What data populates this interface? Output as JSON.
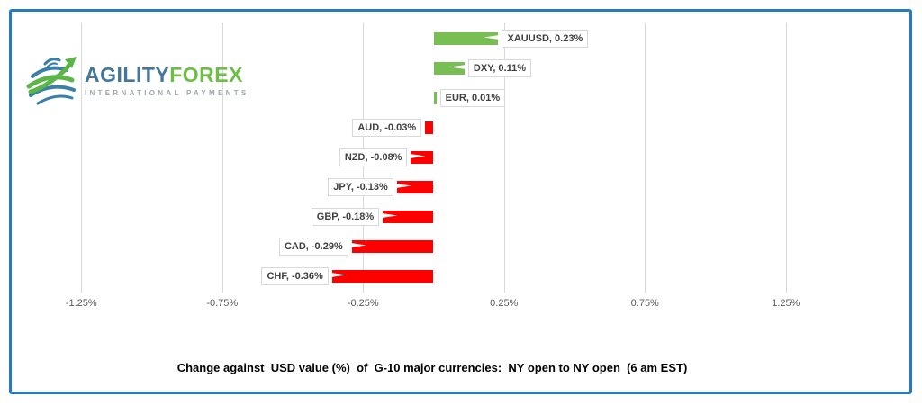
{
  "frame": {
    "border_color": "#2879BF"
  },
  "logo": {
    "brand_primary": "AGILITY",
    "brand_secondary": "FOREX",
    "tagline": "INTERNATIONAL PAYMENTS",
    "icon": "globe-arrow-icon",
    "colors": {
      "primary": "#45779B",
      "secondary": "#6CBE45",
      "tagline": "#A0A6AC"
    }
  },
  "chart_data": {
    "type": "bar",
    "orientation": "horizontal",
    "title": "Change against  USD value (%)  of  G-10 major currencies:  NY open to NY open  (6 am EST)",
    "categories": [
      "XAUUSD",
      "DXY",
      "EUR",
      "AUD",
      "NZD",
      "JPY",
      "GBP",
      "CAD",
      "CHF"
    ],
    "values": [
      0.23,
      0.11,
      0.01,
      -0.03,
      -0.08,
      -0.13,
      -0.18,
      -0.29,
      -0.36
    ],
    "data_labels": [
      "XAUUSD, 0.23%",
      "DXY, 0.11%",
      "EUR, 0.01%",
      "AUD, -0.03%",
      "NZD, -0.08%",
      "JPY, -0.13%",
      "GBP, -0.18%",
      "CAD, -0.29%",
      "CHF, -0.36%"
    ],
    "x_ticks": [
      "-1.25%",
      "-0.75%",
      "-0.25%",
      "0.25%",
      "0.75%",
      "1.25%"
    ],
    "x_tick_values": [
      -1.25,
      -0.75,
      -0.25,
      0.25,
      0.75,
      1.25
    ],
    "xlim": [
      -1.5,
      1.5
    ],
    "grid": true,
    "legend": "none",
    "positive_color": "#77BE53",
    "negative_color": "#FF0000",
    "gridline_color": "#D9D9D9",
    "label_text_color": "#404040",
    "axis_text_color": "#595959"
  }
}
